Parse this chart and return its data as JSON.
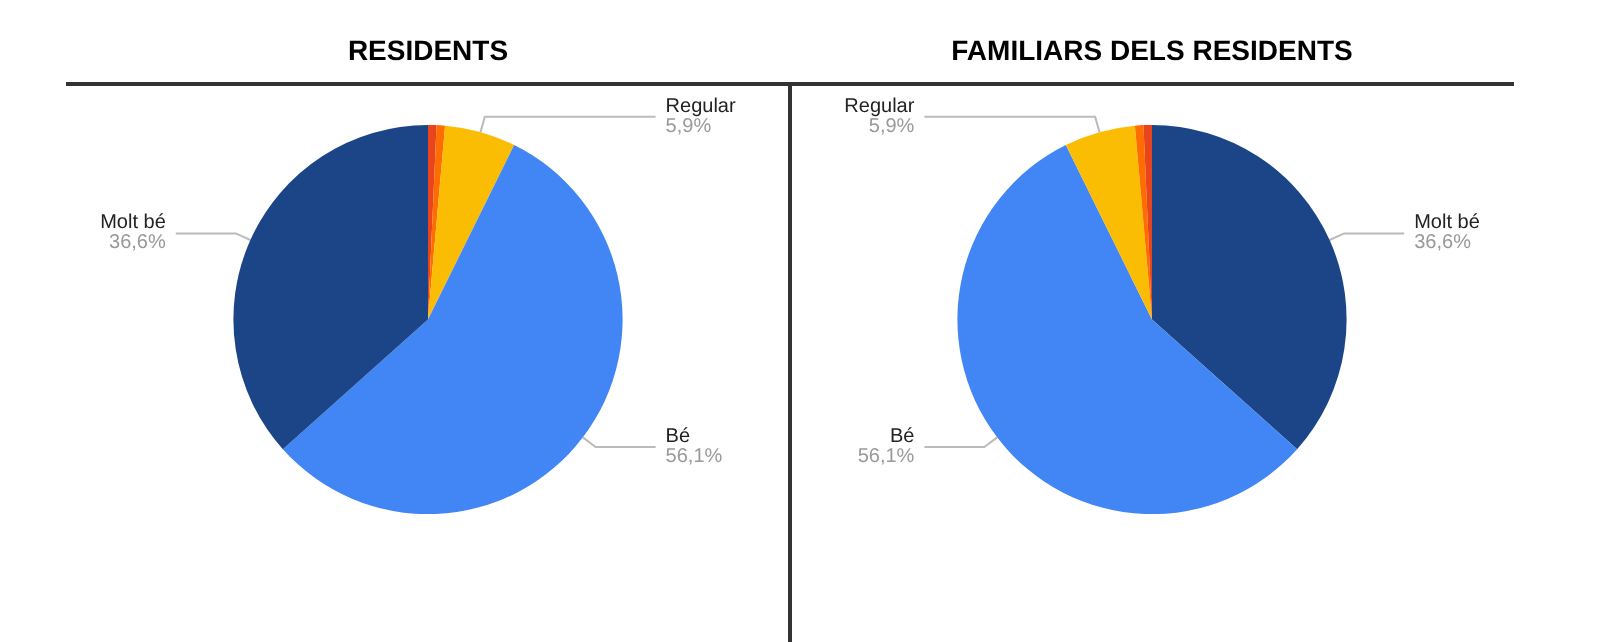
{
  "chart_data": [
    {
      "type": "pie",
      "title": "RESIDENTS",
      "categories": [
        null,
        null,
        "Regular",
        "Bé",
        "Molt bé"
      ],
      "values": [
        0.7,
        0.7,
        5.9,
        56.1,
        36.6
      ],
      "value_labels": [
        null,
        null,
        "5,9%",
        "56,1%",
        "36,6%"
      ],
      "colors": [
        "#e8451c",
        "#ff6d01",
        "#fbbc04",
        "#4285f4",
        "#1c4587"
      ],
      "legend": false
    },
    {
      "type": "pie",
      "title": "FAMILIARS DELS RESIDENTS",
      "categories": [
        "Molt bé",
        "Bé",
        "Regular",
        null,
        null
      ],
      "values": [
        36.6,
        56.1,
        5.9,
        0.7,
        0.7
      ],
      "value_labels": [
        "36,6%",
        "56,1%",
        "5,9%",
        null,
        null
      ],
      "colors": [
        "#1c4587",
        "#4285f4",
        "#fbbc04",
        "#ff6d01",
        "#e8451c"
      ],
      "legend": false
    }
  ]
}
